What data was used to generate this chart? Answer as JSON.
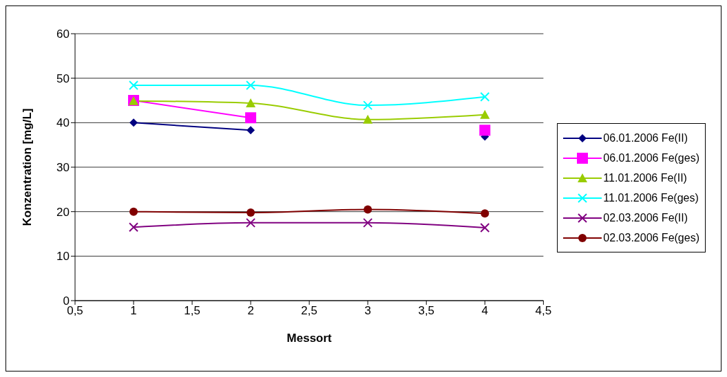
{
  "chart_data": {
    "type": "line",
    "xlabel": "Messort",
    "ylabel": "Konzentration [mg/L]",
    "x": [
      1,
      2,
      3,
      4
    ],
    "xlim": [
      0.5,
      4.5
    ],
    "xticks": [
      {
        "value": 0.5,
        "label": "0,5"
      },
      1,
      {
        "value": 1.5,
        "label": "1,5"
      },
      2,
      {
        "value": 2.5,
        "label": "2,5"
      },
      3,
      {
        "value": 3.5,
        "label": "3,5"
      },
      4,
      {
        "value": 4.5,
        "label": "4,5"
      }
    ],
    "ylim": [
      0,
      60
    ],
    "yticks": [
      0,
      10,
      20,
      30,
      40,
      50,
      60
    ],
    "grid": "y",
    "legend": "right",
    "line_style": "solid",
    "series": [
      {
        "name": "06.01.2006 Fe(II)",
        "color": "#000080",
        "marker": "diamond",
        "values": [
          40,
          38.3,
          null,
          36.9
        ]
      },
      {
        "name": "06.01.2006 Fe(ges)",
        "color": "#ff00ff",
        "marker": "square",
        "values": [
          45,
          41.1,
          null,
          38.3
        ]
      },
      {
        "name": "11.01.2006 Fe(II)",
        "color": "#99cc00",
        "marker": "triangle",
        "values": [
          44.9,
          44.4,
          40.7,
          41.8
        ]
      },
      {
        "name": "11.01.2006 Fe(ges)",
        "color": "#00ffff",
        "marker": "cross",
        "values": [
          48.4,
          48.4,
          43.9,
          45.8
        ]
      },
      {
        "name": "02.03.2006 Fe(II)",
        "color": "#800080",
        "marker": "cross",
        "values": [
          16.5,
          17.5,
          17.5,
          16.4
        ]
      },
      {
        "name": "02.03.2006 Fe(ges)",
        "color": "#800000",
        "marker": "circle",
        "values": [
          20,
          19.8,
          20.5,
          19.6
        ]
      }
    ]
  }
}
